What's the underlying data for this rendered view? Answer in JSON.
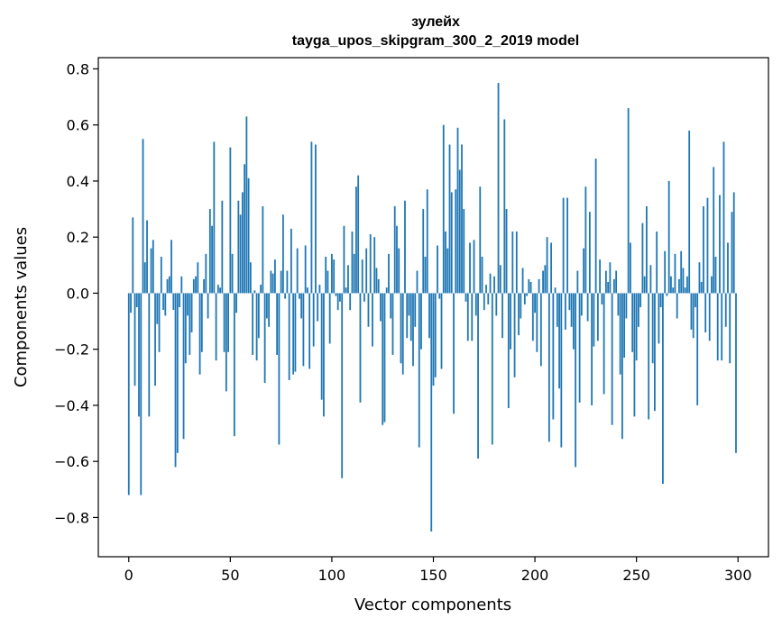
{
  "chart_data": {
    "type": "bar",
    "title": "зулейх",
    "subtitle": "tayga_upos_skipgram_300_2_2019 model",
    "xlabel": "Vector components",
    "ylabel": "Components values",
    "xlim": [
      -15,
      315
    ],
    "ylim": [
      -0.94,
      0.84
    ],
    "xticks": [
      0,
      50,
      100,
      150,
      200,
      250,
      300
    ],
    "xtick_labels": [
      "0",
      "50",
      "100",
      "150",
      "200",
      "250",
      "300"
    ],
    "yticks": [
      -0.8,
      -0.6,
      -0.4,
      -0.2,
      0.0,
      0.2,
      0.4,
      0.6,
      0.8
    ],
    "ytick_labels": [
      "−0.8",
      "−0.6",
      "−0.4",
      "−0.2",
      "0.0",
      "0.2",
      "0.4",
      "0.6",
      "0.8"
    ],
    "grid": false,
    "bar_color": "#1f77b4",
    "values": [
      -0.72,
      -0.07,
      0.27,
      -0.33,
      -0.05,
      -0.44,
      -0.72,
      0.55,
      0.11,
      0.26,
      -0.44,
      0.16,
      0.19,
      -0.33,
      -0.11,
      -0.21,
      0.13,
      -0.06,
      -0.08,
      0.05,
      0.06,
      0.19,
      -0.06,
      -0.62,
      -0.57,
      -0.05,
      0.06,
      -0.52,
      -0.25,
      -0.08,
      -0.22,
      -0.14,
      0.05,
      0.06,
      0.11,
      -0.29,
      -0.21,
      0.05,
      0.14,
      -0.09,
      0.3,
      0.24,
      0.54,
      -0.24,
      0.03,
      0.02,
      0.33,
      -0.21,
      -0.35,
      -0.21,
      0.52,
      0.14,
      -0.51,
      -0.07,
      0.33,
      0.28,
      0.36,
      0.46,
      0.63,
      0.41,
      0.11,
      -0.22,
      0.01,
      -0.24,
      -0.16,
      0.03,
      0.31,
      -0.32,
      -0.09,
      -0.12,
      0.08,
      0.07,
      0.12,
      -0.22,
      -0.54,
      0.08,
      0.28,
      -0.02,
      0.08,
      -0.31,
      0.23,
      -0.29,
      -0.28,
      0.16,
      -0.02,
      -0.09,
      -0.26,
      0.17,
      0.02,
      -0.27,
      0.54,
      -0.19,
      0.53,
      -0.1,
      0.03,
      -0.38,
      -0.44,
      0.13,
      0.08,
      -0.18,
      0.14,
      0.12,
      -0.01,
      -0.06,
      -0.03,
      -0.66,
      0.24,
      0.02,
      0.1,
      -0.06,
      0.22,
      0.14,
      0.38,
      0.42,
      -0.39,
      0.12,
      -0.03,
      0.16,
      -0.12,
      0.21,
      -0.19,
      0.2,
      0.09,
      0.05,
      -0.1,
      -0.47,
      -0.46,
      0.02,
      0.14,
      -0.09,
      -0.22,
      0.31,
      0.24,
      0.16,
      -0.25,
      -0.29,
      0.33,
      -0.16,
      -0.08,
      -0.17,
      -0.26,
      -0.12,
      0.08,
      -0.55,
      -0.2,
      0.3,
      0.13,
      0.37,
      -0.16,
      -0.85,
      -0.33,
      -0.3,
      0.17,
      -0.02,
      -0.27,
      0.6,
      0.22,
      0.16,
      0.53,
      0.36,
      -0.43,
      0.37,
      0.59,
      0.44,
      0.53,
      0.3,
      -0.03,
      -0.17,
      0.18,
      -0.17,
      0.19,
      -0.08,
      -0.59,
      0.38,
      0.13,
      -0.06,
      0.03,
      -0.04,
      0.07,
      -0.54,
      0.06,
      -0.08,
      0.75,
      0.1,
      -0.16,
      0.62,
      0.3,
      -0.41,
      -0.2,
      0.22,
      -0.3,
      0.22,
      -0.15,
      -0.09,
      0.09,
      -0.04,
      -0.01,
      0.05,
      0.04,
      -0.17,
      -0.07,
      -0.21,
      0.05,
      -0.26,
      0.08,
      0.1,
      0.2,
      -0.53,
      0.18,
      -0.45,
      0.02,
      -0.12,
      -0.34,
      -0.55,
      0.34,
      -0.13,
      0.34,
      -0.06,
      -0.12,
      -0.2,
      -0.62,
      0.08,
      -0.39,
      -0.08,
      0.16,
      0.38,
      -0.1,
      0.29,
      -0.4,
      -0.19,
      0.48,
      -0.17,
      0.12,
      -0.04,
      -0.36,
      0.08,
      0.04,
      0.11,
      -0.47,
      0.05,
      0.08,
      -0.08,
      -0.29,
      -0.52,
      -0.23,
      -0.09,
      0.66,
      0.18,
      -0.21,
      -0.44,
      -0.24,
      -0.12,
      -0.05,
      0.25,
      0.06,
      0.31,
      -0.45,
      0.1,
      -0.25,
      -0.42,
      0.22,
      -0.18,
      -0.05,
      -0.68,
      0.15,
      -0.01,
      0.4,
      0.06,
      0.02,
      0.14,
      -0.09,
      0.05,
      0.15,
      0.09,
      0.02,
      0.06,
      0.58,
      -0.13,
      -0.16,
      -0.05,
      -0.4,
      0.11,
      0.04,
      0.31,
      -0.14,
      0.34,
      -0.17,
      0.06,
      0.45,
      0.13,
      -0.24,
      0.35,
      -0.24,
      0.54,
      -0.12,
      0.18,
      -0.25,
      0.29,
      0.36,
      -0.57
    ]
  }
}
